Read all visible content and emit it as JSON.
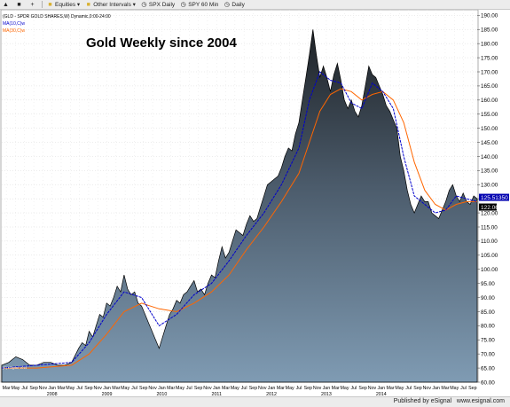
{
  "toolbar": {
    "items": [
      {
        "label": "",
        "icon": "select-arrow-icon"
      },
      {
        "label": "",
        "icon": "zoom-icon"
      },
      {
        "label": "",
        "icon": "crosshair-plus-icon"
      },
      {
        "label": "Equities",
        "icon": "folder-icon"
      },
      {
        "label": "Other Intervals",
        "icon": "folder-icon"
      },
      {
        "label": "SPX Daily",
        "icon": "chart-clock-icon"
      },
      {
        "label": "SPY 60 Min",
        "icon": "chart-clock-icon"
      },
      {
        "label": "Daily",
        "icon": "chart-clock-icon"
      }
    ]
  },
  "chart_header": {
    "symbol_line": "(GLD - SPDR GOLD SHARES,W) Dynamic,0:00-24:00",
    "ma1": "MA(10,C)w",
    "ma2": "MA(30,C)w",
    "watermark": "(C) eSignal, 2014"
  },
  "chart_data": {
    "type": "area",
    "title": "Gold Weekly since 2004",
    "ylim": [
      60,
      192
    ],
    "yticks": [
      190,
      185,
      180,
      175,
      170,
      165,
      160,
      155,
      150,
      145,
      140,
      135,
      130,
      125,
      120,
      115,
      110,
      105,
      100,
      95,
      90,
      85,
      80,
      75,
      70,
      65,
      60
    ],
    "month_labels": [
      "Mar",
      "May",
      "Jul",
      "Sep",
      "Nov",
      "Jan",
      "Mar",
      "May",
      "Jul",
      "Sep",
      "Nov",
      "Jan",
      "Mar",
      "May",
      "Jul",
      "Sep",
      "Nov",
      "Jan",
      "Mar",
      "May",
      "Jul",
      "Sep",
      "Nov",
      "Jan",
      "Mar",
      "May",
      "Jul",
      "Sep",
      "Nov",
      "Jan",
      "Mar",
      "May",
      "Jul",
      "Sep",
      "Nov",
      "Jan",
      "Mar",
      "May",
      "Jul",
      "Sep",
      "Nov",
      "Jan",
      "Mar",
      "May",
      "Jul",
      "Sep",
      "Nov",
      "Jan",
      "Mar",
      "May",
      "Jul",
      "Sep"
    ],
    "year_labels": [
      {
        "label": "2008",
        "index": 5
      },
      {
        "label": "2009",
        "index": 11
      },
      {
        "label": "2010",
        "index": 17
      },
      {
        "label": "2011",
        "index": 23
      },
      {
        "label": "2012",
        "index": 29
      },
      {
        "label": "2013",
        "index": 35
      },
      {
        "label": "2014",
        "index": 41
      }
    ],
    "price_series": {
      "name": "GLD",
      "values": [
        [
          0,
          66
        ],
        [
          2,
          67
        ],
        [
          4,
          69
        ],
        [
          6,
          68
        ],
        [
          8,
          66
        ],
        [
          10,
          66
        ],
        [
          12,
          67
        ],
        [
          14,
          67
        ],
        [
          16,
          66
        ],
        [
          18,
          66
        ],
        [
          20,
          67
        ],
        [
          22,
          72
        ],
        [
          23,
          74
        ],
        [
          24,
          73
        ],
        [
          25,
          78
        ],
        [
          26,
          76
        ],
        [
          27,
          80
        ],
        [
          28,
          84
        ],
        [
          29,
          83
        ],
        [
          30,
          88
        ],
        [
          31,
          87
        ],
        [
          32,
          90
        ],
        [
          33,
          94
        ],
        [
          34,
          92
        ],
        [
          35,
          98
        ],
        [
          36,
          93
        ],
        [
          37,
          91
        ],
        [
          38,
          92
        ],
        [
          39,
          88
        ],
        [
          40,
          87
        ],
        [
          41,
          84
        ],
        [
          42,
          81
        ],
        [
          43,
          78
        ],
        [
          44,
          75
        ],
        [
          45,
          72
        ],
        [
          46,
          76
        ],
        [
          47,
          80
        ],
        [
          48,
          84
        ],
        [
          49,
          86
        ],
        [
          50,
          89
        ],
        [
          51,
          88
        ],
        [
          52,
          91
        ],
        [
          53,
          92
        ],
        [
          54,
          94
        ],
        [
          55,
          96
        ],
        [
          56,
          92
        ],
        [
          57,
          93
        ],
        [
          58,
          91
        ],
        [
          59,
          95
        ],
        [
          60,
          98
        ],
        [
          61,
          97
        ],
        [
          62,
          103
        ],
        [
          63,
          108
        ],
        [
          64,
          104
        ],
        [
          65,
          106
        ],
        [
          66,
          110
        ],
        [
          67,
          114
        ],
        [
          68,
          113
        ],
        [
          69,
          112
        ],
        [
          70,
          116
        ],
        [
          71,
          119
        ],
        [
          72,
          117
        ],
        [
          73,
          118
        ],
        [
          74,
          122
        ],
        [
          75,
          126
        ],
        [
          76,
          130
        ],
        [
          77,
          131
        ],
        [
          78,
          132
        ],
        [
          79,
          133
        ],
        [
          80,
          136
        ],
        [
          81,
          140
        ],
        [
          82,
          143
        ],
        [
          83,
          142
        ],
        [
          84,
          148
        ],
        [
          85,
          152
        ],
        [
          86,
          160
        ],
        [
          87,
          168
        ],
        [
          88,
          176
        ],
        [
          89,
          185
        ],
        [
          90,
          176
        ],
        [
          91,
          168
        ],
        [
          92,
          172
        ],
        [
          93,
          168
        ],
        [
          94,
          163
        ],
        [
          95,
          169
        ],
        [
          96,
          173
        ],
        [
          97,
          167
        ],
        [
          98,
          160
        ],
        [
          99,
          157
        ],
        [
          100,
          160
        ],
        [
          101,
          156
        ],
        [
          102,
          154
        ],
        [
          103,
          158
        ],
        [
          104,
          165
        ],
        [
          105,
          172
        ],
        [
          106,
          169
        ],
        [
          107,
          168
        ],
        [
          108,
          165
        ],
        [
          109,
          162
        ],
        [
          110,
          158
        ],
        [
          111,
          156
        ],
        [
          112,
          153
        ],
        [
          113,
          150
        ],
        [
          114,
          140
        ],
        [
          115,
          135
        ],
        [
          116,
          128
        ],
        [
          117,
          123
        ],
        [
          118,
          120
        ],
        [
          119,
          123
        ],
        [
          120,
          126
        ],
        [
          121,
          124
        ],
        [
          122,
          124
        ],
        [
          123,
          120
        ],
        [
          124,
          119
        ],
        [
          125,
          118
        ],
        [
          126,
          121
        ],
        [
          127,
          124
        ],
        [
          128,
          128
        ],
        [
          129,
          130
        ],
        [
          130,
          126
        ],
        [
          131,
          124
        ],
        [
          132,
          127
        ],
        [
          133,
          124
        ],
        [
          134,
          123
        ],
        [
          135,
          126
        ],
        [
          136,
          125
        ]
      ]
    },
    "ma10_series": {
      "name": "MA(10,C)w",
      "color": "#0000cc",
      "values": [
        [
          0,
          65
        ],
        [
          10,
          66
        ],
        [
          20,
          67
        ],
        [
          25,
          74
        ],
        [
          30,
          84
        ],
        [
          35,
          92
        ],
        [
          40,
          90
        ],
        [
          45,
          80
        ],
        [
          50,
          84
        ],
        [
          55,
          91
        ],
        [
          60,
          95
        ],
        [
          65,
          103
        ],
        [
          70,
          112
        ],
        [
          75,
          120
        ],
        [
          80,
          130
        ],
        [
          85,
          143
        ],
        [
          88,
          160
        ],
        [
          91,
          170
        ],
        [
          94,
          167
        ],
        [
          97,
          166
        ],
        [
          100,
          159
        ],
        [
          103,
          157
        ],
        [
          106,
          166
        ],
        [
          109,
          163
        ],
        [
          112,
          157
        ],
        [
          115,
          140
        ],
        [
          118,
          126
        ],
        [
          121,
          123
        ],
        [
          124,
          120
        ],
        [
          127,
          121
        ],
        [
          130,
          126
        ],
        [
          133,
          125
        ],
        [
          136,
          124
        ]
      ]
    },
    "ma30_series": {
      "name": "MA(30,C)w",
      "color": "#ff6600",
      "values": [
        [
          0,
          65
        ],
        [
          10,
          65
        ],
        [
          20,
          66
        ],
        [
          25,
          70
        ],
        [
          30,
          77
        ],
        [
          35,
          85
        ],
        [
          40,
          88
        ],
        [
          45,
          86
        ],
        [
          50,
          85
        ],
        [
          55,
          88
        ],
        [
          60,
          92
        ],
        [
          65,
          98
        ],
        [
          70,
          107
        ],
        [
          75,
          115
        ],
        [
          80,
          124
        ],
        [
          85,
          134
        ],
        [
          88,
          145
        ],
        [
          91,
          156
        ],
        [
          94,
          162
        ],
        [
          97,
          164
        ],
        [
          100,
          163
        ],
        [
          103,
          160
        ],
        [
          106,
          162
        ],
        [
          109,
          163
        ],
        [
          112,
          160
        ],
        [
          115,
          152
        ],
        [
          118,
          138
        ],
        [
          121,
          128
        ],
        [
          124,
          123
        ],
        [
          127,
          121
        ],
        [
          130,
          123
        ],
        [
          133,
          124
        ],
        [
          136,
          124
        ]
      ]
    },
    "last_price_label": "125.51350",
    "ma_label": "122.06",
    "x_max": 136
  },
  "footer": {
    "published": "Published by eSignal",
    "site": "www.esignal.com"
  }
}
